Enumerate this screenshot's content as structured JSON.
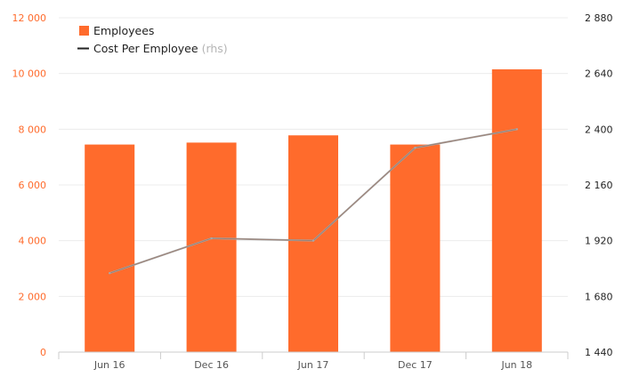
{
  "chart_data": {
    "type": "bar+line",
    "categories": [
      "Jun 16",
      "Dec 16",
      "Jun 17",
      "Dec 17",
      "Jun 18"
    ],
    "series": [
      {
        "name": "Employees",
        "type": "bar",
        "axis": "left",
        "color": "#ff6b2c",
        "values": [
          7450,
          7520,
          7780,
          7450,
          10150
        ]
      },
      {
        "name": "Cost Per Employee",
        "legend_suffix": "(rhs)",
        "type": "line",
        "axis": "right",
        "color": "#a8a8a8",
        "values": [
          1780,
          1930,
          1920,
          2320,
          2400
        ]
      }
    ],
    "y_left": {
      "lim": [
        0,
        12000
      ],
      "ticks": [
        0,
        2000,
        4000,
        6000,
        8000,
        10000,
        12000
      ],
      "tick_labels": [
        "0",
        "2 000",
        "4 000",
        "6 000",
        "8 000",
        "10 000",
        "12 000"
      ],
      "color": "#ff6b2c"
    },
    "y_right": {
      "lim": [
        1440,
        2880
      ],
      "ticks": [
        1440,
        1680,
        1920,
        2160,
        2400,
        2640,
        2880
      ],
      "tick_labels": [
        "1 440",
        "1 680",
        "1 920",
        "2 160",
        "2 400",
        "2 640",
        "2 880"
      ]
    },
    "grid": true,
    "legend_position": "top-left",
    "title": "",
    "xlabel": "",
    "ylabel": ""
  },
  "legend": {
    "employees": "Employees",
    "cost": "Cost Per Employee",
    "cost_suffix": "(rhs)"
  }
}
